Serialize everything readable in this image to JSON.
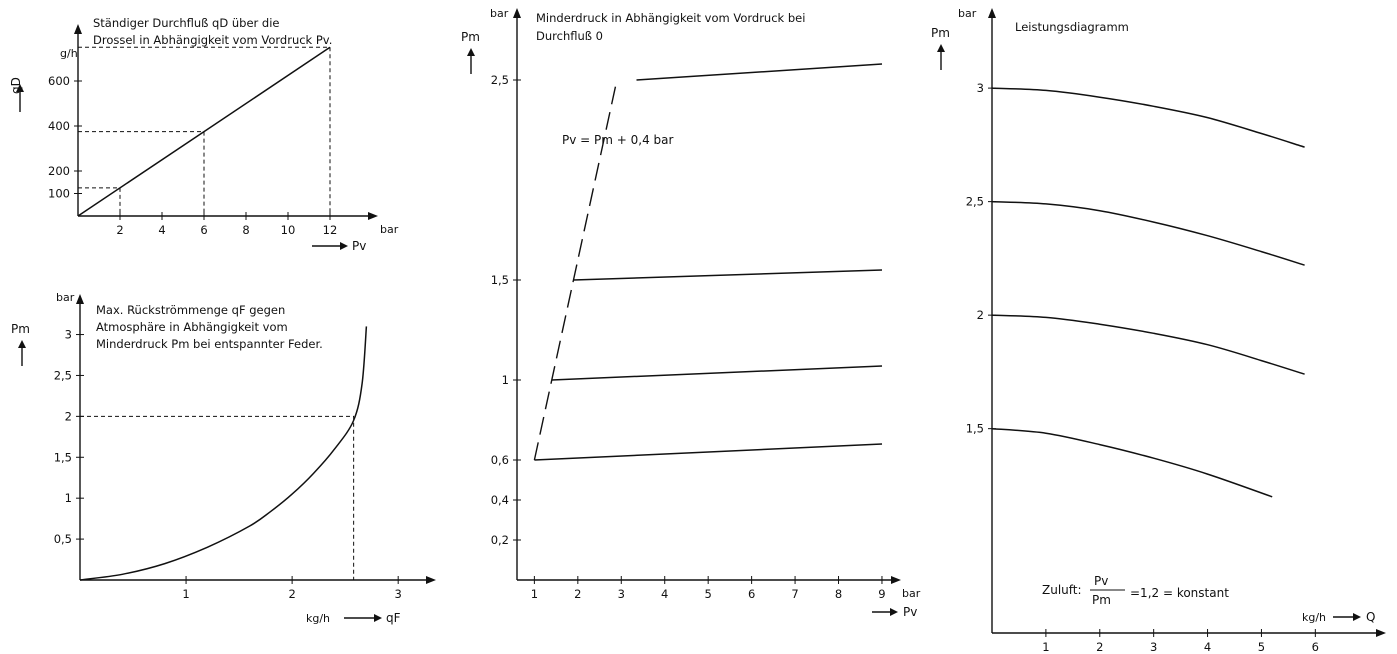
{
  "chart_data": [
    {
      "id": "durchfluss",
      "type": "line",
      "title_line1": "Ständiger Durchfluß qD über die",
      "title_line2": "Drossel in Abhängigkeit vom Vordruck Pv.",
      "y_symbol": "qD",
      "y_unit": "g/h",
      "x_unit": "bar",
      "x_symbol": "Pv",
      "x_ticks": [
        "2",
        "4",
        "6",
        "8",
        "10",
        "12"
      ],
      "y_ticks": [
        "100",
        "200",
        "400",
        "600"
      ],
      "xlim": [
        0,
        14
      ],
      "ylim": [
        0,
        800
      ],
      "series": [
        {
          "x": [
            0,
            12
          ],
          "y": [
            0,
            750
          ]
        }
      ],
      "reference_points": [
        {
          "x": 2,
          "y": 125
        },
        {
          "x": 6,
          "y": 375
        },
        {
          "x": 12,
          "y": 750
        }
      ]
    },
    {
      "id": "rueckstroemung",
      "type": "line",
      "title_line1": "Max. Rückströmmenge qF gegen",
      "title_line2": "Atmosphäre in Abhängigkeit vom",
      "title_line3": "Minderdruck Pm bei entspannter Feder.",
      "y_symbol": "Pm",
      "y_unit": "bar",
      "x_unit": "kg/h",
      "x_symbol": "qF",
      "x_ticks": [
        "1",
        "2",
        "3"
      ],
      "y_ticks": [
        "0,5",
        "1",
        "1,5",
        "2",
        "2,5",
        "3"
      ],
      "xlim": [
        0,
        3.3
      ],
      "ylim": [
        0,
        3.3
      ],
      "series": [
        {
          "x": [
            0,
            0.4,
            0.8,
            1.2,
            1.6,
            1.8,
            2.0,
            2.2,
            2.4,
            2.58,
            2.66,
            2.7
          ],
          "y": [
            0,
            0.07,
            0.2,
            0.4,
            0.66,
            0.84,
            1.05,
            1.3,
            1.6,
            1.95,
            2.4,
            3.1
          ]
        }
      ],
      "reference_points": [
        {
          "x": 2.58,
          "y": 2.0
        }
      ]
    },
    {
      "id": "minderdruck",
      "type": "line",
      "title_line1": "Minderdruck in Abhängigkeit vom Vordruck bei",
      "title_line2": "Durchfluß 0",
      "y_symbol": "Pm",
      "y_unit": "bar",
      "x_unit": "bar",
      "x_symbol": "Pv",
      "x_ticks": [
        "1",
        "2",
        "3",
        "4",
        "5",
        "6",
        "7",
        "8",
        "9"
      ],
      "y_ticks": [
        {
          "label": "0,2",
          "v": 0.2
        },
        {
          "label": "0,4",
          "v": 0.4
        },
        {
          "label": "0,6",
          "v": 0.6
        },
        {
          "label": "1",
          "v": 1
        },
        {
          "label": "1,5",
          "v": 1.5
        },
        {
          "label": "2,5",
          "v": 2.5
        }
      ],
      "annotation": "Pv = Pm + 0,4 bar",
      "xlim": [
        0.6,
        9.3
      ],
      "ylim": [
        0,
        2.8
      ],
      "series": [
        {
          "x": [
            1.0,
            9.0
          ],
          "y": [
            0.6,
            0.68
          ]
        },
        {
          "x": [
            1.4,
            9.0
          ],
          "y": [
            1.0,
            1.07
          ]
        },
        {
          "x": [
            1.9,
            9.0
          ],
          "y": [
            1.5,
            1.55
          ]
        },
        {
          "x": [
            3.35,
            9.0
          ],
          "y": [
            2.5,
            2.58
          ]
        }
      ],
      "boundary": {
        "x": [
          1.0,
          2.9
        ],
        "y": [
          0.6,
          2.5
        ]
      }
    },
    {
      "id": "leistung",
      "type": "line",
      "title": "Leistungsdiagramm",
      "y_symbol": "Pm",
      "y_unit": "bar",
      "x_unit": "kg/h",
      "x_symbol": "Q",
      "x_ticks": [
        "1",
        "2",
        "3",
        "4",
        "5",
        "6"
      ],
      "y_ticks": [
        "1,5",
        "2",
        "2,5",
        "3"
      ],
      "note_prefix": "Zuluft:",
      "note_num": "Pv",
      "note_den": "Pm",
      "note_suffix": "=1,2 = konstant",
      "xlim": [
        0,
        7.2
      ],
      "ylim": [
        0.6,
        3.3
      ],
      "series": [
        {
          "x": [
            0,
            1,
            2,
            3,
            4,
            5,
            5.8
          ],
          "y": [
            3.0,
            2.99,
            2.96,
            2.92,
            2.87,
            2.8,
            2.74
          ]
        },
        {
          "x": [
            0,
            1,
            2,
            3,
            4,
            5,
            5.8
          ],
          "y": [
            2.5,
            2.49,
            2.46,
            2.41,
            2.35,
            2.28,
            2.22
          ]
        },
        {
          "x": [
            0,
            1,
            2,
            3,
            4,
            5,
            5.8
          ],
          "y": [
            2.0,
            1.99,
            1.96,
            1.92,
            1.87,
            1.8,
            1.74
          ]
        },
        {
          "x": [
            0,
            1,
            2,
            3,
            4,
            5.2
          ],
          "y": [
            1.5,
            1.48,
            1.43,
            1.37,
            1.3,
            1.2
          ]
        }
      ]
    }
  ]
}
